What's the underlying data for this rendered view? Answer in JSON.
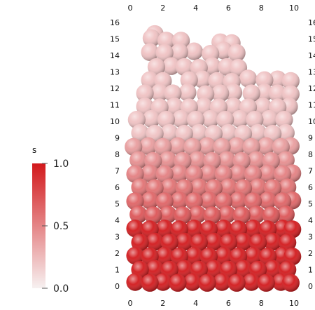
{
  "chart_data": {
    "type": "scatter",
    "title": "",
    "xlabel": "",
    "ylabel": "",
    "xlim": [
      0,
      10
    ],
    "ylim": [
      0,
      16
    ],
    "x_ticks": [
      "0",
      "2",
      "4",
      "6",
      "8",
      "10"
    ],
    "y_ticks": [
      "0",
      "1",
      "2",
      "3",
      "4",
      "5",
      "6",
      "7",
      "8",
      "9",
      "10",
      "11",
      "12",
      "13",
      "14",
      "15",
      "16"
    ],
    "grid": false,
    "particle_diameter": 1,
    "color_by": "s",
    "colorbar": {
      "title": "s",
      "ticks": [
        "1.0",
        "0.5",
        "0.0"
      ],
      "range": [
        0,
        1
      ],
      "placement": "left",
      "color_low": "#f7f1f1",
      "color_high": "#d2191c"
    },
    "segments": [
      {
        "y_from": 0,
        "y_to": 4,
        "s": 1.0
      },
      {
        "y_from": 4,
        "y_to": 9,
        "s_from": 0.75,
        "s_to": 0.35
      },
      {
        "y_from": 9,
        "y_to": 15.5,
        "s": 0.22
      }
    ],
    "series": [
      {
        "x": [
          0.3,
          1.2,
          2.0,
          2.9,
          3.8,
          4.7,
          5.6,
          6.5,
          7.4,
          8.3,
          9.2,
          9.8
        ],
        "y": [
          0.25,
          0.2,
          0.25,
          0.2,
          0.25,
          0.2,
          0.25,
          0.2,
          0.25,
          0.2,
          0.25,
          0.2
        ]
      },
      {
        "x": [
          0.6,
          1.5,
          2.4,
          3.3,
          4.2,
          5.1,
          6.0,
          6.9,
          7.8,
          8.7,
          9.6
        ],
        "y": [
          1.0,
          1.05,
          1.0,
          1.05,
          1.0,
          1.05,
          1.0,
          1.05,
          1.0,
          1.05,
          1.0
        ]
      },
      {
        "x": [
          0.3,
          1.2,
          2.1,
          3.0,
          3.9,
          4.8,
          5.7,
          6.6,
          7.5,
          8.4,
          9.3,
          9.9
        ],
        "y": [
          1.85,
          1.8,
          1.85,
          1.8,
          1.85,
          1.8,
          1.85,
          1.8,
          1.85,
          1.8,
          1.85,
          1.8
        ]
      },
      {
        "x": [
          0.6,
          1.5,
          2.4,
          3.3,
          4.2,
          5.1,
          6.0,
          6.9,
          7.8,
          8.7,
          9.6
        ],
        "y": [
          2.65,
          2.7,
          2.65,
          2.7,
          2.65,
          2.7,
          2.65,
          2.7,
          2.65,
          2.7,
          2.65
        ]
      },
      {
        "x": [
          0.3,
          1.2,
          2.1,
          3.0,
          3.9,
          4.8,
          5.7,
          6.6,
          7.5,
          8.4,
          9.3,
          9.9
        ],
        "y": [
          3.5,
          3.45,
          3.5,
          3.45,
          3.5,
          3.45,
          3.5,
          3.45,
          3.5,
          3.45,
          3.5,
          3.45
        ]
      },
      {
        "x": [
          0.5,
          1.4,
          2.3,
          3.2,
          4.1,
          5.0,
          5.9,
          6.8,
          7.7,
          8.6,
          9.5
        ],
        "y": [
          4.35,
          4.3,
          4.35,
          4.3,
          4.35,
          4.3,
          4.35,
          4.3,
          4.35,
          4.3,
          4.35
        ]
      },
      {
        "x": [
          0.3,
          1.2,
          2.1,
          3.0,
          3.9,
          4.8,
          5.7,
          6.6,
          7.5,
          8.4,
          9.3,
          9.9
        ],
        "y": [
          5.15,
          5.2,
          5.15,
          5.2,
          5.15,
          5.2,
          5.15,
          5.2,
          5.15,
          5.2,
          5.15,
          5.2
        ]
      },
      {
        "x": [
          0.6,
          1.5,
          2.4,
          3.3,
          4.2,
          5.1,
          6.0,
          6.9,
          7.8,
          8.7,
          9.6
        ],
        "y": [
          6.0,
          5.95,
          6.0,
          5.95,
          6.0,
          5.95,
          6.0,
          5.95,
          6.0,
          5.95,
          6.0
        ]
      },
      {
        "x": [
          0.3,
          1.2,
          2.1,
          3.0,
          3.9,
          4.8,
          5.7,
          6.6,
          7.5,
          8.4,
          9.3,
          9.9
        ],
        "y": [
          6.8,
          6.85,
          6.8,
          6.85,
          6.8,
          6.85,
          6.8,
          6.85,
          6.8,
          6.85,
          6.8,
          6.85
        ]
      },
      {
        "x": [
          0.5,
          1.4,
          2.3,
          3.2,
          4.1,
          5.0,
          5.9,
          6.8,
          7.7,
          8.6,
          9.5
        ],
        "y": [
          7.65,
          7.6,
          7.65,
          7.6,
          7.65,
          7.6,
          7.65,
          7.6,
          7.65,
          7.6,
          7.65
        ]
      },
      {
        "x": [
          0.2,
          1.1,
          2.0,
          2.9,
          3.8,
          4.7,
          5.6,
          6.5,
          7.4,
          8.3,
          9.2,
          9.8
        ],
        "y": [
          8.45,
          8.5,
          8.45,
          8.5,
          8.45,
          8.5,
          8.45,
          8.5,
          8.45,
          8.5,
          8.45,
          8.5
        ]
      },
      {
        "x": [
          0.6,
          1.5,
          2.4,
          3.3,
          4.2,
          5.1,
          6.0,
          6.9,
          7.8,
          8.7,
          9.5
        ],
        "y": [
          9.3,
          9.25,
          9.3,
          9.25,
          9.3,
          9.25,
          9.3,
          9.25,
          9.3,
          9.25,
          9.3
        ]
      },
      {
        "x": [
          0.4,
          1.3,
          2.2,
          3.1,
          4.0,
          4.9,
          5.8,
          6.7,
          7.6,
          8.5,
          9.4
        ],
        "y": [
          10.1,
          10.15,
          10.1,
          10.15,
          10.1,
          10.15,
          10.1,
          10.15,
          10.1,
          10.15,
          10.1
        ]
      },
      {
        "x": [
          0.9,
          1.8,
          2.7,
          3.6,
          4.5,
          5.4,
          6.3,
          7.2,
          8.1,
          9.0,
          9.7
        ],
        "y": [
          10.9,
          10.85,
          10.9,
          10.85,
          10.9,
          10.85,
          10.9,
          10.85,
          10.9,
          10.85,
          10.9
        ]
      },
      {
        "x": [
          0.9,
          1.8,
          2.6,
          3.5,
          4.6,
          5.5,
          6.3,
          7.4,
          8.2,
          9.0,
          9.8
        ],
        "y": [
          11.7,
          11.75,
          11.7,
          11.75,
          11.65,
          11.7,
          11.75,
          11.7,
          11.75,
          11.7,
          11.65
        ]
      },
      {
        "x": [
          1.2,
          2.0,
          3.6,
          4.4,
          5.3,
          6.2,
          7.2,
          8.2,
          9.0,
          9.8
        ],
        "y": [
          12.5,
          12.45,
          12.5,
          12.55,
          12.45,
          12.4,
          12.6,
          12.5,
          12.55,
          12.45
        ]
      },
      {
        "x": [
          1.6,
          2.5,
          3.3,
          4.2,
          5.0,
          5.9,
          6.6
        ],
        "y": [
          13.3,
          13.35,
          13.3,
          13.25,
          13.35,
          13.3,
          13.25
        ]
      },
      {
        "x": [
          1.2,
          2.1,
          3.0,
          3.9,
          4.9,
          5.7,
          6.5
        ],
        "y": [
          14.2,
          14.15,
          14.2,
          14.25,
          14.1,
          14.3,
          14.15
        ]
      },
      {
        "x": [
          1.3,
          2.2,
          1.5,
          3.1,
          5.5,
          6.2
        ],
        "y": [
          15.05,
          14.9,
          15.3,
          14.9,
          14.8,
          14.75
        ]
      }
    ]
  }
}
